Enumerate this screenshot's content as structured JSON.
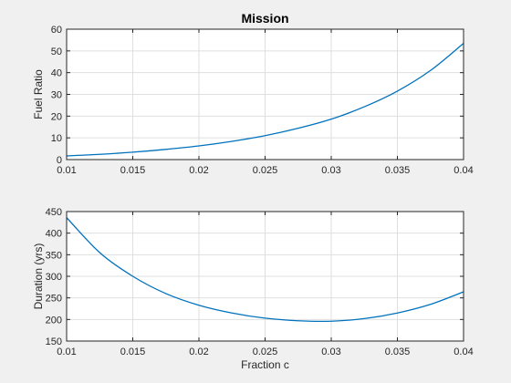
{
  "chart_data": [
    {
      "type": "line",
      "title": "Mission",
      "xlabel": "",
      "ylabel": "Fuel Ratio",
      "xlim": [
        0.01,
        0.04
      ],
      "ylim": [
        0,
        60
      ],
      "xticks": [
        "0.01",
        "0.015",
        "0.02",
        "0.025",
        "0.03",
        "0.035",
        "0.04"
      ],
      "yticks": [
        "0",
        "10",
        "20",
        "30",
        "40",
        "50",
        "60"
      ],
      "grid": true,
      "color": "#0072bd",
      "series": [
        {
          "x": [
            0.01,
            0.0125,
            0.015,
            0.0175,
            0.02,
            0.0225,
            0.025,
            0.0275,
            0.03,
            0.0325,
            0.035,
            0.0375,
            0.04
          ],
          "values": [
            1.7,
            2.4,
            3.4,
            4.7,
            6.3,
            8.4,
            11.0,
            14.4,
            18.6,
            24.3,
            31.5,
            41.0,
            53.5
          ]
        }
      ]
    },
    {
      "type": "line",
      "title": "",
      "xlabel": "Fraction c",
      "ylabel": "Duration (yrs)",
      "xlim": [
        0.01,
        0.04
      ],
      "ylim": [
        150,
        450
      ],
      "xticks": [
        "0.01",
        "0.015",
        "0.02",
        "0.025",
        "0.03",
        "0.035",
        "0.04"
      ],
      "yticks": [
        "150",
        "200",
        "250",
        "300",
        "350",
        "400",
        "450"
      ],
      "grid": true,
      "color": "#0072bd",
      "series": [
        {
          "x": [
            0.01,
            0.0125,
            0.015,
            0.0175,
            0.02,
            0.0225,
            0.025,
            0.0275,
            0.03,
            0.0325,
            0.035,
            0.0375,
            0.04
          ],
          "values": [
            436,
            355,
            300,
            260,
            233,
            215,
            203,
            197,
            196,
            202,
            215,
            235,
            264
          ]
        }
      ]
    }
  ]
}
